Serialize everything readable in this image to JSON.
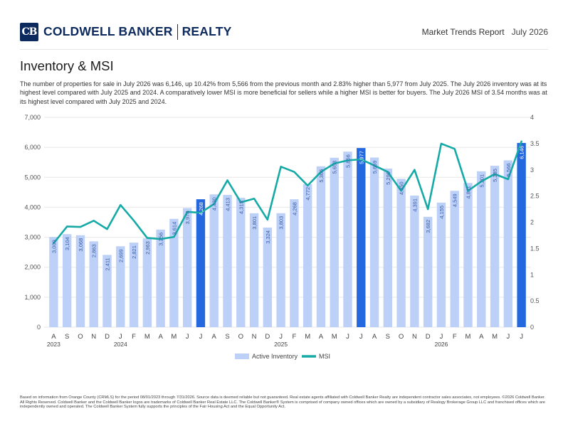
{
  "header": {
    "logo_mark": "CB",
    "logo_brand": "COLDWELL BANKER",
    "logo_division": "REALTY",
    "report_label": "Market Trends Report",
    "report_month": "July 2026"
  },
  "page": {
    "title": "Inventory & MSI",
    "description": "The number of properties for sale in July 2026 was 6,146, up 10.42% from 5,566 from the previous month and 2.83% higher than 5,977 from July 2025. The July 2026 inventory was at its highest level compared with July 2025 and 2024. A comparatively lower MSI is more beneficial for sellers while a higher MSI is better for buyers. The July 2026 MSI of 3.54 months was at its highest level compared with July 2025 and 2024."
  },
  "colors": {
    "brand": "#0d2a5e",
    "bar": "#bdd0f7",
    "bar_highlight": "#2468e0",
    "line": "#16aaa7",
    "grid": "#e7e7e7"
  },
  "chart_data": {
    "type": "bar+line",
    "categories": [
      "A",
      "S",
      "O",
      "N",
      "D",
      "J",
      "F",
      "M",
      "A",
      "M",
      "J",
      "J",
      "A",
      "S",
      "O",
      "N",
      "D",
      "J",
      "F",
      "M",
      "A",
      "M",
      "J",
      "J",
      "A",
      "S",
      "O",
      "N",
      "D",
      "J",
      "F",
      "M",
      "A",
      "M",
      "J",
      "J"
    ],
    "year_labels": [
      {
        "label": "2023",
        "index": 0
      },
      {
        "label": "2024",
        "index": 5
      },
      {
        "label": "2025",
        "index": 17
      },
      {
        "label": "2026",
        "index": 29
      }
    ],
    "series": [
      {
        "name": "Active Inventory",
        "type": "bar",
        "axis": "left",
        "values": [
          3009,
          3104,
          3068,
          2863,
          2411,
          2699,
          2821,
          2963,
          3256,
          3614,
          3974,
          4268,
          4430,
          4413,
          4315,
          3801,
          3324,
          3803,
          4268,
          4772,
          5366,
          5653,
          5856,
          5977,
          5659,
          5290,
          4950,
          4391,
          3682,
          4155,
          4549,
          4811,
          5201,
          5385,
          5566,
          6146
        ],
        "highlight_indices": [
          11,
          23,
          35
        ],
        "labels": [
          "3,009",
          "3,104",
          "3,068",
          "2,863",
          "2,411",
          "2,699",
          "2,821",
          "2,963",
          "3,256",
          "3,614",
          "3,974",
          "4,268",
          "4,430",
          "4,413",
          "4,315",
          "3,801",
          "3,324",
          "3,803",
          "4,268",
          "4,772",
          "5,366",
          "5,653",
          "5,856",
          "5,977",
          "5,659",
          "5,290",
          "4,950",
          "4,391",
          "3,682",
          "4,155",
          "4,549",
          "4,811",
          "5,201",
          "5,385",
          "5,566",
          "6,146"
        ]
      },
      {
        "name": "MSI",
        "type": "line",
        "axis": "right",
        "values": [
          1.6,
          1.92,
          1.91,
          2.03,
          1.87,
          2.33,
          2.03,
          1.7,
          1.68,
          1.72,
          2.2,
          2.18,
          2.35,
          2.8,
          2.38,
          2.45,
          2.05,
          3.06,
          2.96,
          2.7,
          2.96,
          3.12,
          3.18,
          3.2,
          3.08,
          2.96,
          2.6,
          3.0,
          2.25,
          3.5,
          3.4,
          2.6,
          2.78,
          2.92,
          2.82,
          3.54
        ]
      }
    ],
    "y_left": {
      "min": 0,
      "max": 7000,
      "ticks": [
        0,
        1000,
        2000,
        3000,
        4000,
        5000,
        6000,
        7000
      ],
      "tick_labels": [
        "0",
        "1,000",
        "2,000",
        "3,000",
        "4,000",
        "5,000",
        "6,000",
        "7,000"
      ]
    },
    "y_right": {
      "min": 0,
      "max": 4,
      "ticks": [
        0,
        0.5,
        1,
        1.5,
        2,
        2.5,
        3,
        3.5,
        4
      ],
      "tick_labels": [
        "0",
        "0.5",
        "1",
        "1.5",
        "2",
        "2.5",
        "3",
        "3.5",
        "4"
      ]
    },
    "grid": true,
    "legend_position": "bottom"
  },
  "footer": {
    "disclaimer": "Based on information from Orange County (CRMLS) for the period 08/01/2023 through 7/31/2026. Source data is deemed reliable but not guaranteed. Real estate agents affiliated with Coldwell Banker Realty are independent contractor sales associates, not employees. ©2026 Coldwell Banker. All Rights Reserved. Coldwell Banker and the Coldwell Banker logos are trademarks of Coldwell Banker Real Estate LLC. The Coldwell Banker® System is comprised of company owned offices which are owned by a subsidiary of Realogy Brokerage Group LLC and franchised offices which are independently owned and operated. The Coldwell Banker System fully supports the principles of the Fair Housing Act and the Equal Opportunity Act."
  }
}
